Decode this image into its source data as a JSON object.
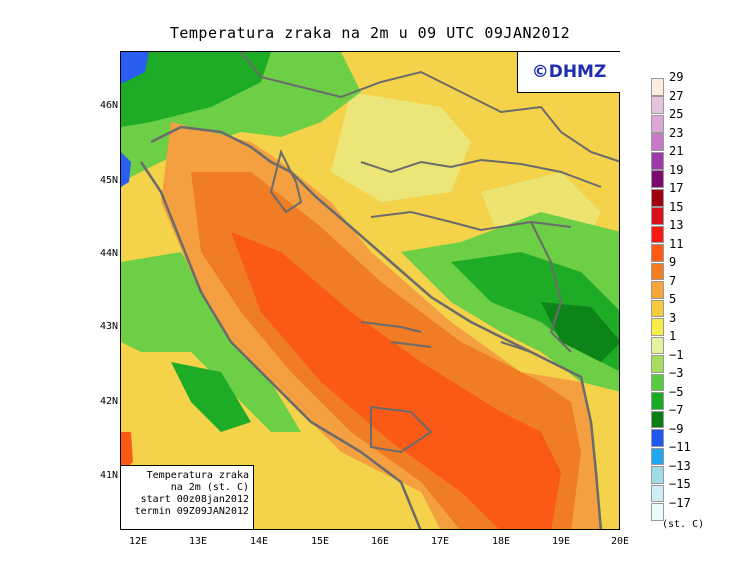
{
  "title": "Temperatura zraka na 2m u 09 UTC 09JAN2012",
  "logo": "©DHMZ",
  "axes": {
    "lat_labels": [
      "46N",
      "45N",
      "44N",
      "43N",
      "42N",
      "41N"
    ],
    "lon_labels": [
      "12E",
      "13E",
      "14E",
      "15E",
      "16E",
      "17E",
      "18E",
      "19E",
      "20E"
    ]
  },
  "info_box": {
    "line1": "Temperatura zraka",
    "line2": "na 2m (st. C)",
    "line3": "start 00z08jan2012",
    "line4": "termin 09Z09JAN2012"
  },
  "legend": {
    "unit": "(st. C)",
    "labels": [
      "29",
      "27",
      "25",
      "23",
      "21",
      "19",
      "17",
      "15",
      "13",
      "11",
      "9",
      "7",
      "5",
      "3",
      "1",
      "−1",
      "−3",
      "−5",
      "−7",
      "−9",
      "−11",
      "−13",
      "−15",
      "−17"
    ],
    "colors": [
      "#fbeee0",
      "#e4c4dc",
      "#dca8d4",
      "#c87ac8",
      "#9c3aa8",
      "#7a0a6e",
      "#9c0010",
      "#d8101c",
      "#fa1a14",
      "#ff5a14",
      "#f47c20",
      "#f6a638",
      "#f4cc3c",
      "#f8ec48",
      "#e6f2a0",
      "#a8dc5c",
      "#58cc3e",
      "#18ac24",
      "#0c7c14",
      "#1e56ee",
      "#1ea8f0",
      "#a0dce8",
      "#cdeef4",
      "#ebfafa"
    ]
  },
  "map_colors": {
    "sea_warm": "#f07c24",
    "sea_hot": "#fb5a16",
    "coast": "#f4a040",
    "land_mild": "#f4d24a",
    "land_cool": "#e8ee8c",
    "land_cold": "#6ccf46",
    "land_colder": "#1eac26",
    "land_coldest": "#0c8418",
    "frost": "#2a5ef0",
    "border": "#6b6b6b"
  }
}
